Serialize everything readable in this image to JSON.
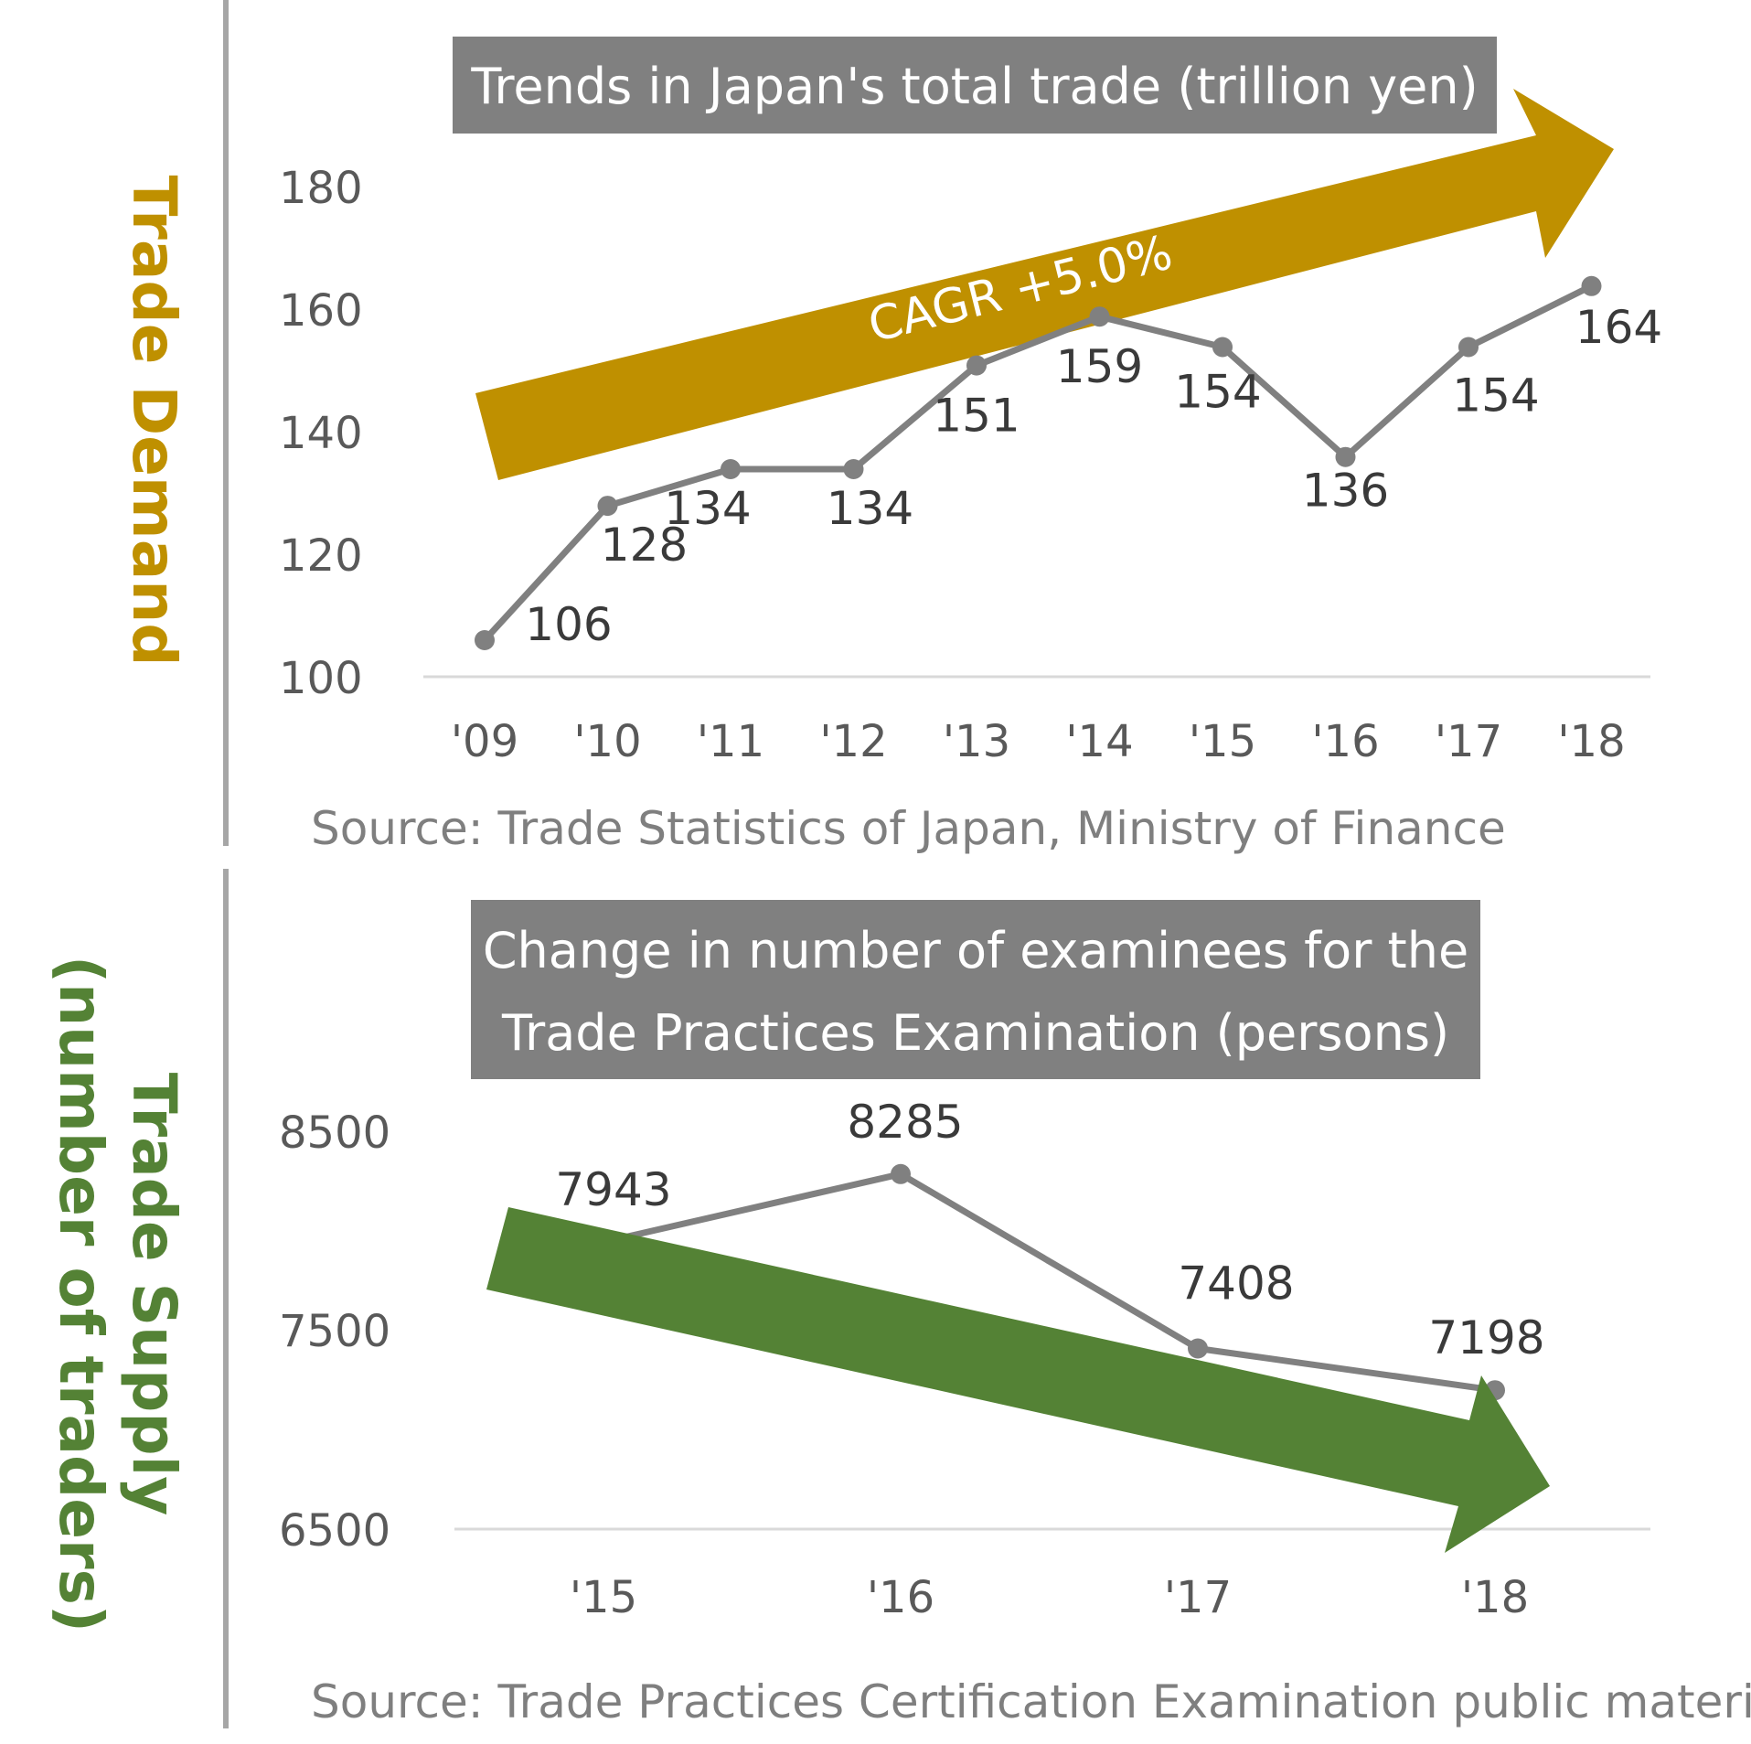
{
  "colors": {
    "demand": "#BF9000",
    "supply": "#548235",
    "line": "#808080",
    "title_box": "#808080",
    "axis": "#d9d9d9",
    "divider": "#a6a6a6"
  },
  "side_labels": {
    "demand": "Trade Demand",
    "supply_line1": "Trade Supply",
    "supply_line2": "(number of traders)"
  },
  "arrows": {
    "demand_label": "CAGR +5.0%"
  },
  "chart_data": [
    {
      "type": "line",
      "title": "Trends in Japan's total trade (trillion yen)",
      "categories": [
        "'09",
        "'10",
        "'11",
        "'12",
        "'13",
        "'14",
        "'15",
        "'16",
        "'17",
        "'18"
      ],
      "values": [
        106,
        128,
        134,
        134,
        151,
        159,
        154,
        136,
        154,
        164
      ],
      "yticks": [
        "180",
        "160",
        "140",
        "120",
        "100"
      ],
      "ylim": [
        100,
        180
      ],
      "xlabel": "",
      "ylabel": "",
      "source": "Source: Trade Statistics of Japan, Ministry of Finance",
      "trend": "up",
      "grid": false
    },
    {
      "type": "line",
      "title_line1": "Change in number of examinees for the",
      "title_line2": "Trade Practices Examination (persons)",
      "categories": [
        "'15",
        "'16",
        "'17",
        "'18"
      ],
      "values": [
        7943,
        8285,
        7408,
        7198
      ],
      "yticks": [
        "8500",
        "7500",
        "6500"
      ],
      "ylim": [
        6500,
        8500
      ],
      "xlabel": "",
      "ylabel": "",
      "source": "Source: Trade Practices Certification Examination public materials",
      "trend": "down",
      "grid": false
    }
  ]
}
